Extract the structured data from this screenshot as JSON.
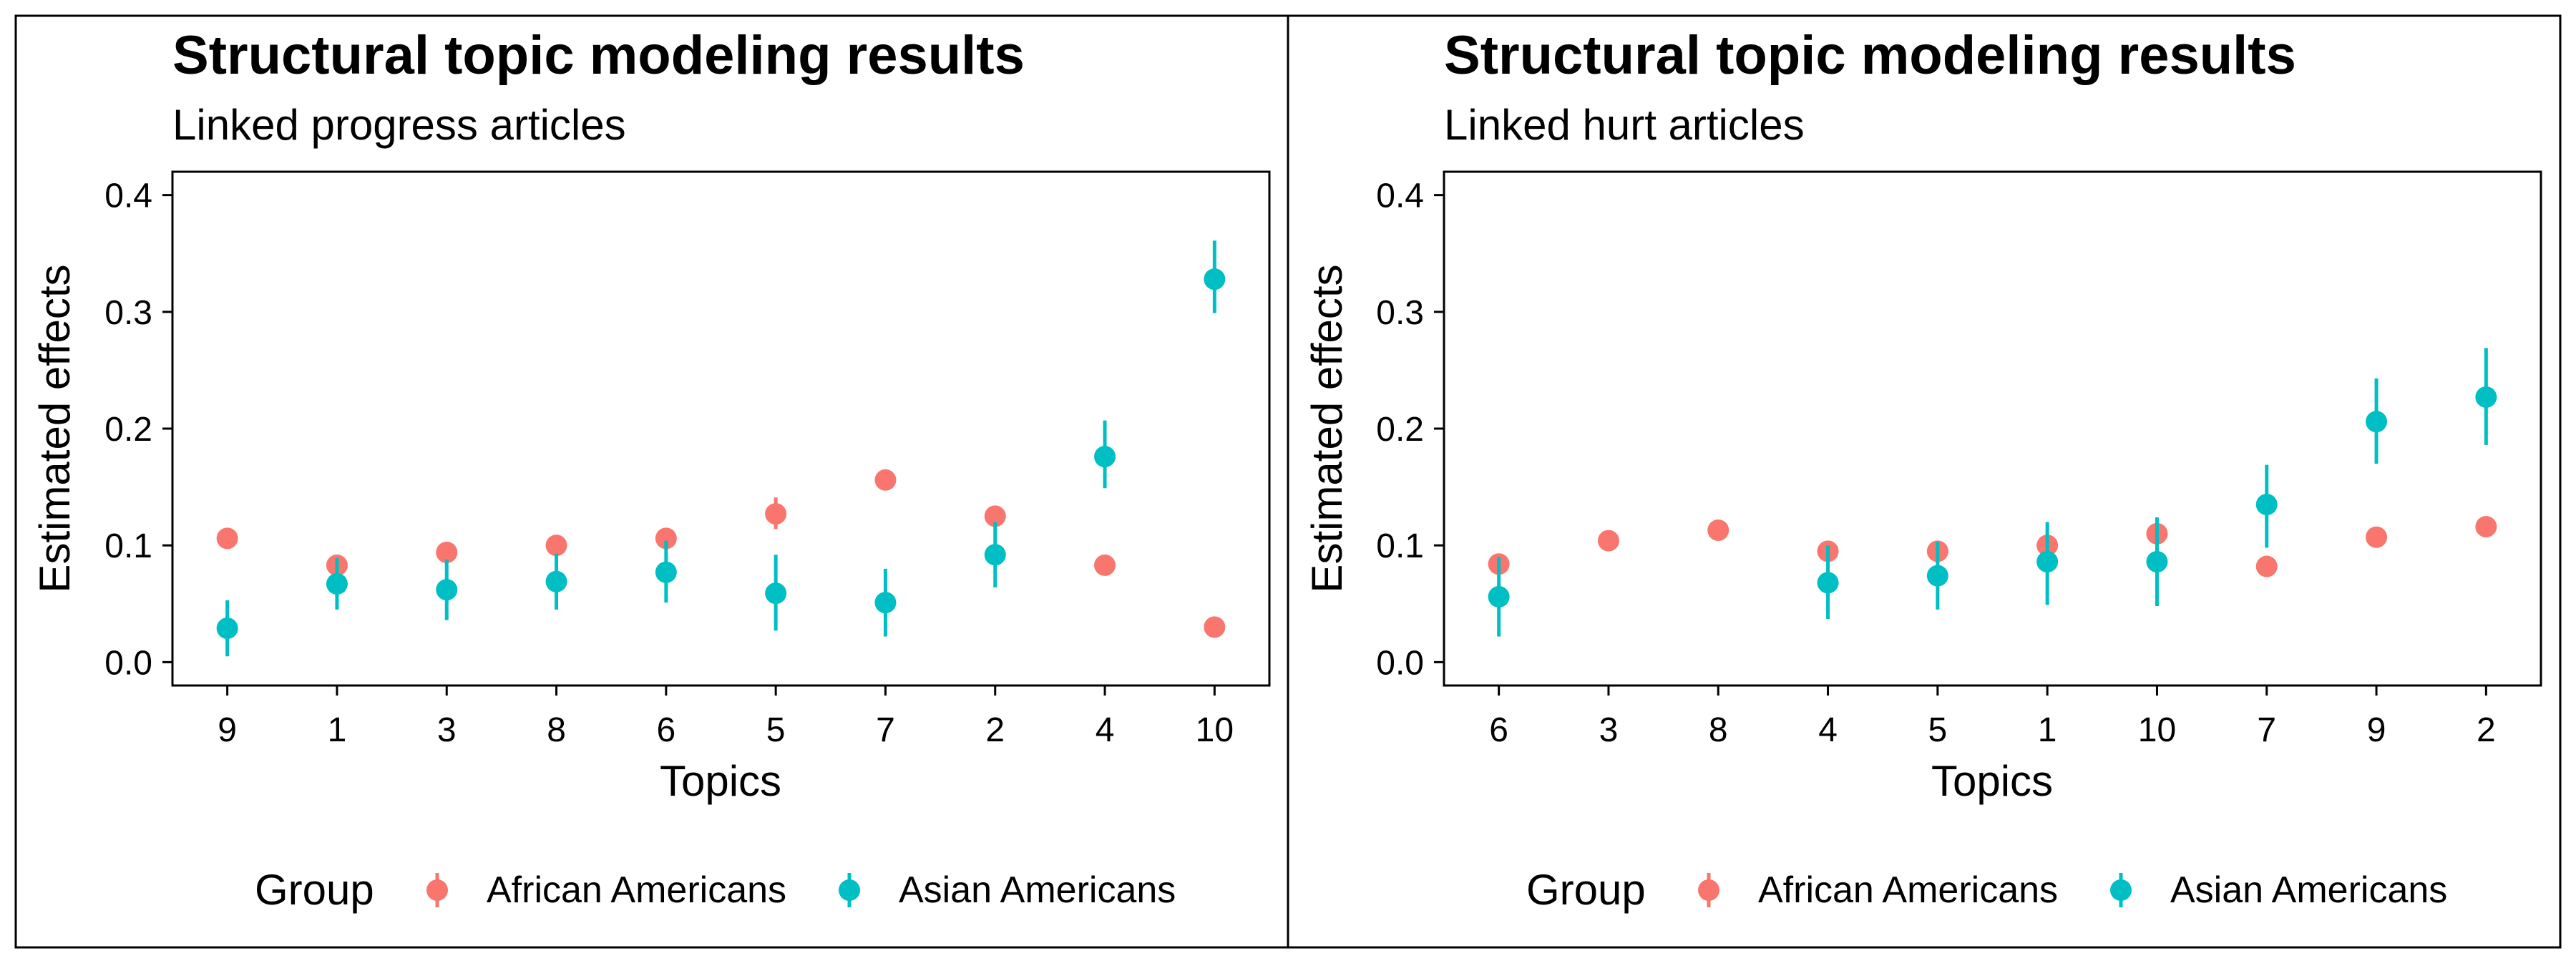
{
  "colors": {
    "african_americans": "#F8766D",
    "asian_americans": "#00BFC4",
    "frame": "#000000",
    "background": "#FFFFFF"
  },
  "legend": {
    "title": "Group",
    "entries": [
      "African Americans",
      "Asian Americans"
    ],
    "position": "bottom"
  },
  "chart_data": [
    {
      "type": "scatter",
      "title": "Structural topic modeling results",
      "subtitle": "Linked progress articles",
      "xlabel": "Topics",
      "ylabel": "Estimated effects",
      "ylim": [
        -0.02,
        0.42
      ],
      "yticks": [
        "0.0",
        "0.1",
        "0.2",
        "0.3",
        "0.4"
      ],
      "categories": [
        "9",
        "1",
        "3",
        "8",
        "6",
        "5",
        "7",
        "2",
        "4",
        "10"
      ],
      "grid": false,
      "series": [
        {
          "name": "African Americans",
          "values": [
            0.106,
            0.083,
            0.094,
            0.1,
            0.106,
            0.127,
            0.156,
            0.125,
            0.083,
            0.03
          ],
          "lower": [
            0.1,
            0.077,
            0.086,
            0.093,
            0.099,
            0.114,
            0.147,
            0.118,
            0.078,
            0.025
          ],
          "upper": [
            0.111,
            0.089,
            0.101,
            0.106,
            0.113,
            0.141,
            0.165,
            0.131,
            0.088,
            0.035
          ]
        },
        {
          "name": "Asian Americans",
          "values": [
            0.029,
            0.067,
            0.062,
            0.069,
            0.077,
            0.059,
            0.051,
            0.092,
            0.176,
            0.328
          ],
          "lower": [
            0.005,
            0.045,
            0.036,
            0.045,
            0.051,
            0.027,
            0.022,
            0.064,
            0.149,
            0.299
          ],
          "upper": [
            0.053,
            0.089,
            0.088,
            0.093,
            0.104,
            0.092,
            0.08,
            0.12,
            0.207,
            0.361
          ]
        }
      ]
    },
    {
      "type": "scatter",
      "title": "Structural topic modeling results",
      "subtitle": "Linked hurt articles",
      "xlabel": "Topics",
      "ylabel": "Estimated effects",
      "ylim": [
        -0.02,
        0.42
      ],
      "yticks": [
        "0.0",
        "0.1",
        "0.2",
        "0.3",
        "0.4"
      ],
      "categories": [
        "6",
        "3",
        "8",
        "4",
        "5",
        "1",
        "10",
        "7",
        "9",
        "2"
      ],
      "grid": false,
      "series": [
        {
          "name": "African Americans",
          "values": [
            0.084,
            0.104,
            0.113,
            0.095,
            0.095,
            0.1,
            0.11,
            0.082,
            0.107,
            0.116
          ],
          "lower": [
            0.079,
            0.099,
            0.108,
            0.089,
            0.089,
            0.093,
            0.103,
            0.077,
            0.102,
            0.111
          ],
          "upper": [
            0.089,
            0.109,
            0.118,
            0.101,
            0.101,
            0.107,
            0.117,
            0.087,
            0.112,
            0.121
          ]
        },
        {
          "name": "Asian Americans",
          "values": [
            0.056,
            null,
            null,
            0.068,
            0.074,
            0.086,
            0.086,
            0.135,
            0.206,
            0.227
          ],
          "lower": [
            0.022,
            null,
            null,
            0.037,
            0.045,
            0.049,
            0.048,
            0.098,
            0.17,
            0.186
          ],
          "upper": [
            0.09,
            null,
            null,
            0.1,
            0.103,
            0.12,
            0.124,
            0.169,
            0.243,
            0.269
          ]
        }
      ]
    }
  ]
}
